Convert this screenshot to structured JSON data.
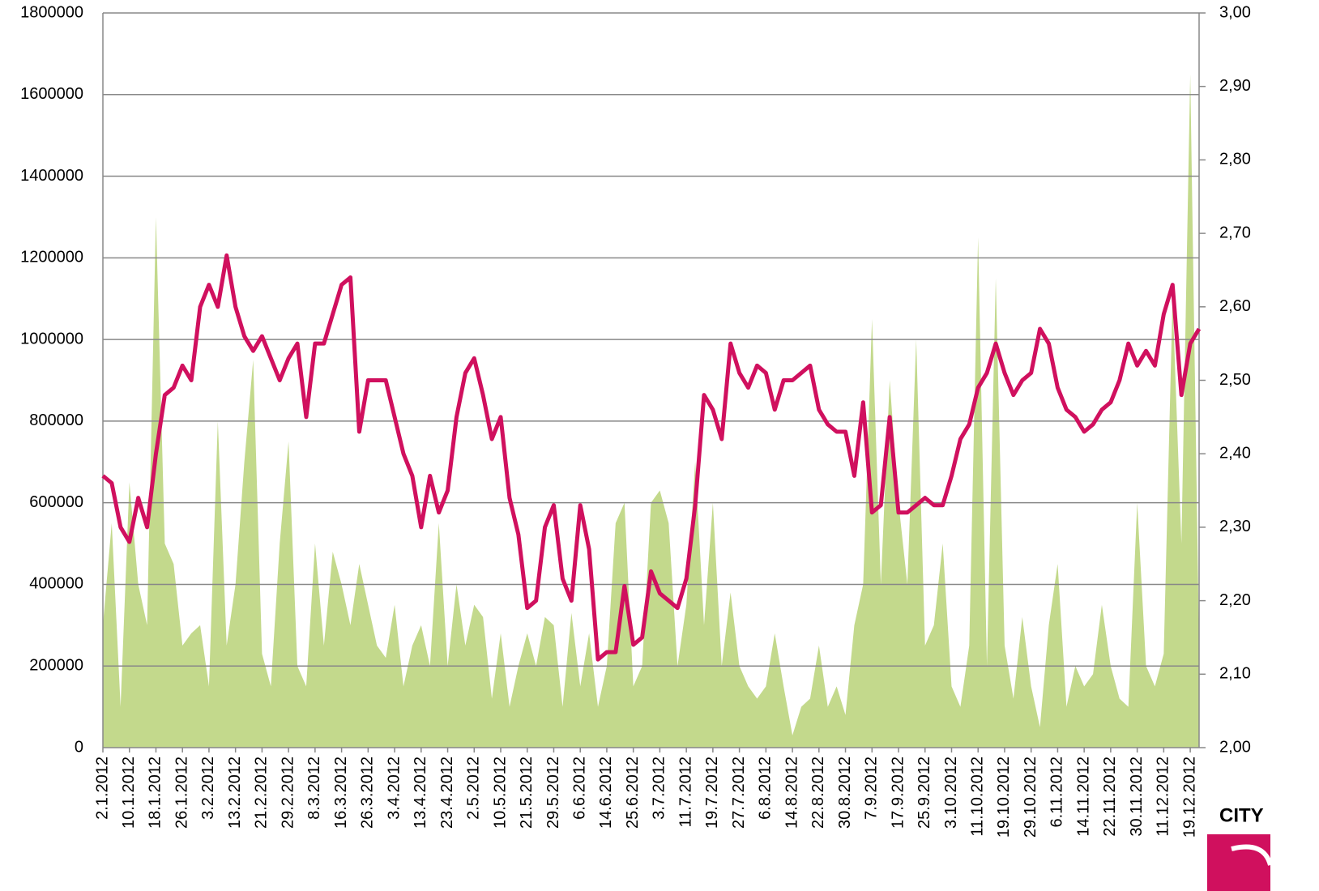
{
  "chart_data": {
    "type": "area-line",
    "categories": [
      "2.1.2012",
      null,
      null,
      "10.1.2012",
      null,
      null,
      "18.1.2012",
      null,
      null,
      "26.1.2012",
      null,
      null,
      "3.2.2012",
      null,
      null,
      "13.2.2012",
      null,
      null,
      "21.2.2012",
      null,
      null,
      "29.2.2012",
      null,
      null,
      "8.3.2012",
      null,
      null,
      "16.3.2012",
      null,
      null,
      "26.3.2012",
      null,
      null,
      "3.4.2012",
      null,
      null,
      "13.4.2012",
      null,
      null,
      "23.4.2012",
      null,
      null,
      "2.5.2012",
      null,
      null,
      "10.5.2012",
      null,
      null,
      "21.5.2012",
      null,
      null,
      "29.5.2012",
      null,
      null,
      "6.6.2012",
      null,
      null,
      "14.6.2012",
      null,
      null,
      "25.6.2012",
      null,
      null,
      "3.7.2012",
      null,
      null,
      "11.7.2012",
      null,
      null,
      "19.7.2012",
      null,
      null,
      "27.7.2012",
      null,
      null,
      "6.8.2012",
      null,
      null,
      "14.8.2012",
      null,
      null,
      "22.8.2012",
      null,
      null,
      "30.8.2012",
      null,
      null,
      "7.9.2012",
      null,
      null,
      "17.9.2012",
      null,
      null,
      "25.9.2012",
      null,
      null,
      "3.10.2012",
      null,
      null,
      "11.10.2012",
      null,
      null,
      "19.10.2012",
      null,
      null,
      "29.10.2012",
      null,
      null,
      "6.11.2012",
      null,
      null,
      "14.11.2012",
      null,
      null,
      "22.11.2012",
      null,
      null,
      "30.11.2012",
      null,
      null,
      "11.12.2012",
      null,
      null,
      "19.12.2012",
      null
    ],
    "series": [
      {
        "type": "area",
        "color": "#c3d98c",
        "values": [
          300000,
          550000,
          100000,
          650000,
          400000,
          300000,
          1300000,
          500000,
          450000,
          250000,
          280000,
          300000,
          150000,
          800000,
          250000,
          400000,
          700000,
          950000,
          230000,
          150000,
          500000,
          750000,
          200000,
          150000,
          500000,
          250000,
          480000,
          400000,
          300000,
          450000,
          350000,
          250000,
          220000,
          350000,
          150000,
          250000,
          300000,
          200000,
          550000,
          200000,
          400000,
          250000,
          350000,
          320000,
          120000,
          280000,
          100000,
          200000,
          280000,
          200000,
          320000,
          300000,
          100000,
          330000,
          150000,
          280000,
          100000,
          200000,
          550000,
          600000,
          150000,
          200000,
          600000,
          630000,
          550000,
          200000,
          350000,
          700000,
          300000,
          600000,
          200000,
          380000,
          200000,
          150000,
          120000,
          150000,
          280000,
          150000,
          30000,
          100000,
          120000,
          250000,
          100000,
          150000,
          80000,
          300000,
          400000,
          1050000,
          400000,
          900000,
          600000,
          400000,
          1000000,
          250000,
          300000,
          500000,
          150000,
          100000,
          250000,
          1250000,
          200000,
          1150000,
          250000,
          120000,
          320000,
          150000,
          50000,
          300000,
          450000,
          100000,
          200000,
          150000,
          180000,
          350000,
          200000,
          120000,
          100000,
          600000,
          200000,
          150000,
          230000,
          1100000,
          500000,
          1650000,
          250000
        ]
      },
      {
        "type": "line",
        "color": "#d0105e",
        "axis": "y2",
        "values": [
          2.37,
          2.36,
          2.3,
          2.28,
          2.34,
          2.3,
          2.4,
          2.48,
          2.49,
          2.52,
          2.5,
          2.6,
          2.63,
          2.6,
          2.67,
          2.6,
          2.56,
          2.54,
          2.56,
          2.53,
          2.5,
          2.53,
          2.55,
          2.45,
          2.55,
          2.55,
          2.59,
          2.63,
          2.64,
          2.43,
          2.5,
          2.5,
          2.5,
          2.45,
          2.4,
          2.37,
          2.3,
          2.37,
          2.32,
          2.35,
          2.45,
          2.51,
          2.53,
          2.48,
          2.42,
          2.45,
          2.34,
          2.29,
          2.19,
          2.2,
          2.3,
          2.33,
          2.23,
          2.2,
          2.33,
          2.27,
          2.12,
          2.13,
          2.13,
          2.22,
          2.14,
          2.15,
          2.24,
          2.21,
          2.2,
          2.19,
          2.23,
          2.33,
          2.48,
          2.46,
          2.42,
          2.55,
          2.51,
          2.49,
          2.52,
          2.51,
          2.46,
          2.5,
          2.5,
          2.51,
          2.52,
          2.46,
          2.44,
          2.43,
          2.43,
          2.37,
          2.47,
          2.32,
          2.33,
          2.45,
          2.32,
          2.32,
          2.33,
          2.34,
          2.33,
          2.33,
          2.37,
          2.42,
          2.44,
          2.49,
          2.51,
          2.55,
          2.51,
          2.48,
          2.5,
          2.51,
          2.57,
          2.55,
          2.49,
          2.46,
          2.45,
          2.43,
          2.44,
          2.46,
          2.47,
          2.5,
          2.55,
          2.52,
          2.54,
          2.52,
          2.59,
          2.63,
          2.48,
          2.55,
          2.57
        ]
      }
    ],
    "ylim": [
      0,
      1800000
    ],
    "yticks": [
      0,
      200000,
      400000,
      600000,
      800000,
      1000000,
      1200000,
      1400000,
      1600000,
      1800000
    ],
    "y2lim": [
      2,
      3
    ],
    "y2ticks": [
      {
        "value": 2,
        "label": "2,00"
      },
      {
        "value": 2.1,
        "label": "2,10"
      },
      {
        "value": 2.2,
        "label": "2,20"
      },
      {
        "value": 2.3,
        "label": "2,30"
      },
      {
        "value": 2.4,
        "label": "2,40"
      },
      {
        "value": 2.5,
        "label": "2,50"
      },
      {
        "value": 2.6,
        "label": "2,60"
      },
      {
        "value": 2.7,
        "label": "2,70"
      },
      {
        "value": 2.8,
        "label": "2,80"
      },
      {
        "value": 2.9,
        "label": "2,90"
      },
      {
        "value": 3,
        "label": "3,00"
      }
    ],
    "grid": true
  },
  "logo_text": "CITY"
}
